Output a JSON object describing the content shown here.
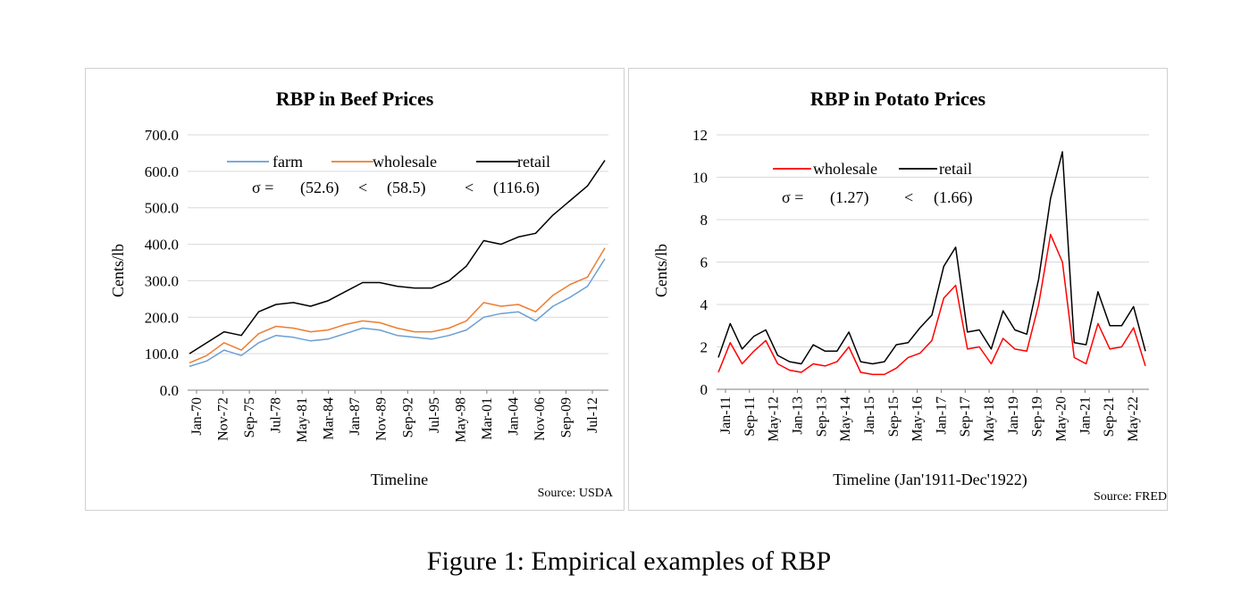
{
  "caption": "Figure 1: Empirical examples of RBP",
  "colors": {
    "farm": "#6a9fd4",
    "wholesale_beef": "#ed7d31",
    "retail": "#000000",
    "wholesale_potato": "#ff0000",
    "grid": "#d9d9d9"
  },
  "chart_data": [
    {
      "type": "line",
      "title": "RBP in Beef Prices",
      "ylabel": "Cents/lb",
      "xlabel": "Timeline",
      "source": "Source: USDA",
      "ylim": [
        0,
        700
      ],
      "yticks": [
        "0.0",
        "100.0",
        "200.0",
        "300.0",
        "400.0",
        "500.0",
        "600.0",
        "700.0"
      ],
      "grid": true,
      "legend_position": "top",
      "sigma_text": {
        "label": "σ =",
        "v1": "(52.6)",
        "lt1": "<",
        "v2": "(58.5)",
        "lt2": "<",
        "v3": "(116.6)"
      },
      "x_tick_labels": [
        "Jan-70",
        "Nov-72",
        "Sep-75",
        "Jul-78",
        "May-81",
        "Mar-84",
        "Jan-87",
        "Nov-89",
        "Sep-92",
        "Jul-95",
        "May-98",
        "Mar-01",
        "Jan-04",
        "Nov-06",
        "Sep-09",
        "Jul-12"
      ],
      "x": [
        "1970",
        "1972",
        "1974",
        "1976",
        "1978",
        "1980",
        "1982",
        "1984",
        "1986",
        "1988",
        "1990",
        "1992",
        "1994",
        "1996",
        "1998",
        "2000",
        "2002",
        "2004",
        "2006",
        "2008",
        "2010",
        "2012",
        "2013",
        "2014",
        "2015"
      ],
      "series": [
        {
          "name": "farm",
          "values": [
            65,
            80,
            110,
            95,
            130,
            150,
            145,
            135,
            140,
            155,
            170,
            165,
            150,
            145,
            140,
            150,
            165,
            200,
            210,
            215,
            190,
            230,
            255,
            285,
            360
          ]
        },
        {
          "name": "wholesale",
          "values": [
            75,
            95,
            130,
            110,
            155,
            175,
            170,
            160,
            165,
            180,
            190,
            185,
            170,
            160,
            160,
            170,
            190,
            240,
            230,
            235,
            215,
            260,
            290,
            310,
            390
          ]
        },
        {
          "name": "retail",
          "values": [
            100,
            130,
            160,
            150,
            215,
            235,
            240,
            230,
            245,
            270,
            295,
            295,
            285,
            280,
            280,
            300,
            340,
            410,
            400,
            420,
            430,
            480,
            520,
            560,
            630
          ]
        }
      ]
    },
    {
      "type": "line",
      "title": "RBP in Potato Prices",
      "ylabel": "Cents/lb",
      "xlabel": "Timeline  (Jan'1911-Dec'1922)",
      "source": "Source: FRED",
      "ylim": [
        0,
        12
      ],
      "yticks": [
        "0",
        "2",
        "4",
        "6",
        "8",
        "10",
        "12"
      ],
      "grid": true,
      "legend_position": "top",
      "sigma_text": {
        "label": "σ =",
        "v1": "(1.27)",
        "lt1": "<",
        "v2": "(1.66)"
      },
      "x_tick_labels": [
        "Jan-11",
        "Sep-11",
        "May-12",
        "Jan-13",
        "Sep-13",
        "May-14",
        "Jan-15",
        "Sep-15",
        "May-16",
        "Jan-17",
        "Sep-17",
        "May-18",
        "Jan-19",
        "Sep-19",
        "May-20",
        "Jan-21",
        "Sep-21",
        "May-22"
      ],
      "x": [
        "Jan-11",
        "May-11",
        "Sep-11",
        "Jan-12",
        "May-12",
        "Sep-12",
        "Jan-13",
        "May-13",
        "Sep-13",
        "Jan-14",
        "May-14",
        "Sep-14",
        "Jan-15",
        "May-15",
        "Sep-15",
        "Jan-16",
        "May-16",
        "Sep-16",
        "Jan-17",
        "May-17",
        "Sep-17",
        "Jan-18",
        "May-18",
        "Sep-18",
        "Jan-19",
        "May-19",
        "Sep-19",
        "Jan-20",
        "May-20",
        "Sep-20",
        "Jan-21",
        "May-21",
        "Sep-21",
        "Jan-22",
        "May-22",
        "Sep-22",
        "Dec-22"
      ],
      "series": [
        {
          "name": "wholesale",
          "values": [
            0.8,
            2.2,
            1.2,
            1.8,
            2.3,
            1.2,
            0.9,
            0.8,
            1.2,
            1.1,
            1.3,
            2.0,
            0.8,
            0.7,
            0.7,
            1.0,
            1.5,
            1.7,
            2.3,
            4.3,
            4.9,
            1.9,
            2.0,
            1.2,
            2.4,
            1.9,
            1.8,
            4.0,
            7.3,
            6.0,
            1.5,
            1.2,
            3.1,
            1.9,
            2.0,
            2.9,
            1.1
          ]
        },
        {
          "name": "retail",
          "values": [
            1.5,
            3.1,
            1.9,
            2.5,
            2.8,
            1.6,
            1.3,
            1.2,
            2.1,
            1.8,
            1.8,
            2.7,
            1.3,
            1.2,
            1.3,
            2.1,
            2.2,
            2.9,
            3.5,
            5.8,
            6.7,
            2.7,
            2.8,
            1.9,
            3.7,
            2.8,
            2.6,
            5.2,
            9.0,
            11.2,
            2.2,
            2.1,
            4.6,
            3.0,
            3.0,
            3.9,
            1.8
          ]
        }
      ]
    }
  ]
}
